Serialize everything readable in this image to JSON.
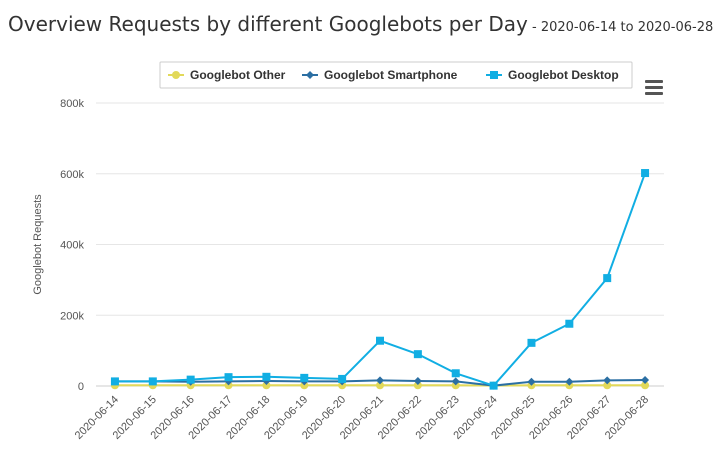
{
  "title": "Overview Requests by different Googlebots per Day",
  "subtitle": " - 2020-06-14 to 2020-06-28",
  "menu_icon": "hamburger-menu-icon",
  "colors": {
    "googlebot_other": "#e2d959",
    "googlebot_smartphone": "#2b6fa3",
    "googlebot_desktop": "#11aee3",
    "grid": "#e6e6e6",
    "axis_text": "#555555"
  },
  "chart_data": {
    "type": "line",
    "title": "Overview Requests by different Googlebots per Day",
    "subtitle": "2020-06-14 to 2020-06-28",
    "ylabel": "Googlebot Requests",
    "xlabel": "",
    "ylim": [
      0,
      800000
    ],
    "yticks": [
      0,
      200000,
      400000,
      600000,
      800000
    ],
    "ytick_labels": [
      "0",
      "200k",
      "400k",
      "600k",
      "800k"
    ],
    "grid": true,
    "legend_position": "top-right",
    "categories": [
      "2020-06-14",
      "2020-06-15",
      "2020-06-16",
      "2020-06-17",
      "2020-06-18",
      "2020-06-19",
      "2020-06-20",
      "2020-06-21",
      "2020-06-22",
      "2020-06-23",
      "2020-06-24",
      "2020-06-25",
      "2020-06-26",
      "2020-06-27",
      "2020-06-28"
    ],
    "series": [
      {
        "name": "Googlebot Other",
        "marker": "circle",
        "values": [
          2000,
          2000,
          2000,
          2000,
          2000,
          2000,
          2000,
          2000,
          2000,
          2000,
          1000,
          2000,
          2000,
          2000,
          2000
        ]
      },
      {
        "name": "Googlebot Smartphone",
        "marker": "diamond",
        "values": [
          13000,
          13000,
          12000,
          13000,
          14000,
          13000,
          13000,
          16000,
          14000,
          13000,
          1000,
          12000,
          12000,
          16000,
          17000
        ]
      },
      {
        "name": "Googlebot Desktop",
        "marker": "square",
        "values": [
          13000,
          13000,
          18000,
          25000,
          26000,
          23000,
          20000,
          128000,
          90000,
          36000,
          1000,
          122000,
          176000,
          305000,
          602000
        ]
      }
    ]
  }
}
